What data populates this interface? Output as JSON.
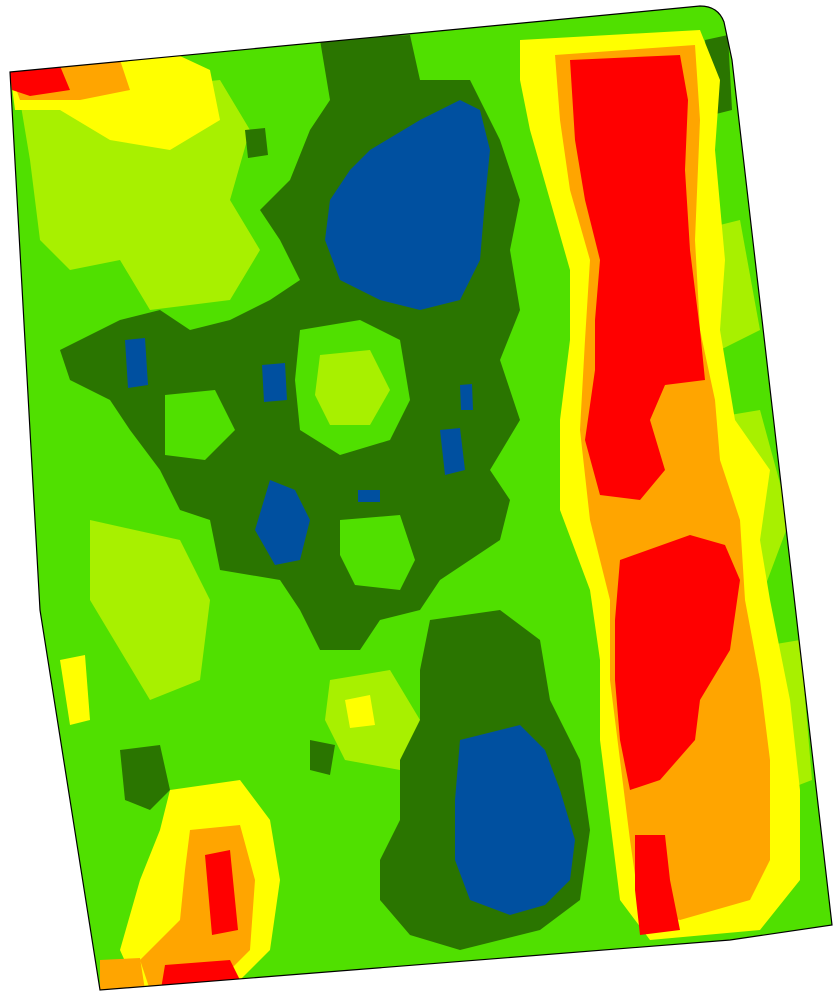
{
  "map": {
    "kind": "field-zone-map",
    "zones": [
      {
        "name": "zone-very-high",
        "color": "#0050a0"
      },
      {
        "name": "zone-high",
        "color": "#2a7500"
      },
      {
        "name": "zone-above-average",
        "color": "#50e000"
      },
      {
        "name": "zone-average",
        "color": "#a8f000"
      },
      {
        "name": "zone-below-average",
        "color": "#ffff00"
      },
      {
        "name": "zone-low",
        "color": "#ffa500"
      },
      {
        "name": "zone-very-low",
        "color": "#ff0000"
      }
    ],
    "boundary_color": "#000000",
    "background": "#ffffff"
  }
}
